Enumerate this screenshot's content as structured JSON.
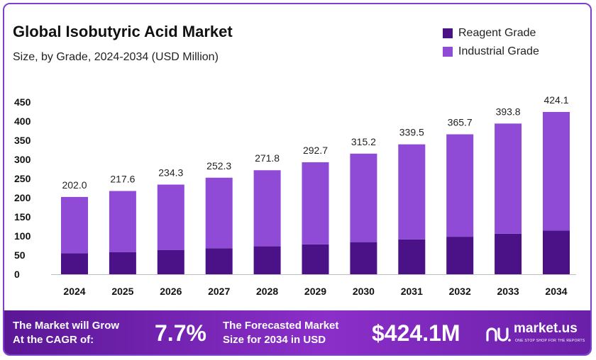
{
  "title": "Global Isobutyric Acid Market",
  "subtitle": "Size, by Grade, 2024-2034 (USD Million)",
  "legend": [
    {
      "label": "Reagent Grade",
      "color": "#4a1286"
    },
    {
      "label": "Industrial Grade",
      "color": "#8f4bd6"
    }
  ],
  "chart_data": {
    "type": "bar",
    "stacked": true,
    "categories": [
      "2024",
      "2025",
      "2026",
      "2027",
      "2028",
      "2029",
      "2030",
      "2031",
      "2032",
      "2033",
      "2034"
    ],
    "series": [
      {
        "name": "Reagent Grade",
        "color": "#4a1286",
        "values": [
          55,
          58,
          63,
          68,
          73,
          78,
          84,
          91,
          98,
          106,
          114
        ]
      },
      {
        "name": "Industrial Grade",
        "color": "#8f4bd6",
        "values": [
          147,
          159.6,
          171.3,
          184.3,
          198.8,
          214.7,
          231.2,
          248.5,
          267.7,
          287.8,
          310.1
        ]
      }
    ],
    "totals": [
      "202.0",
      "217.6",
      "234.3",
      "252.3",
      "271.8",
      "292.7",
      "315.2",
      "339.5",
      "365.7",
      "393.8",
      "424.1"
    ],
    "yticks": [
      0,
      50,
      100,
      150,
      200,
      250,
      300,
      350,
      400,
      450
    ],
    "ylim": [
      0,
      450
    ],
    "grid": false,
    "legend_position": "top-right"
  },
  "footer": {
    "cagr_label_line1": "The Market will Grow",
    "cagr_label_line2": "At the CAGR of:",
    "cagr_value": "7.7%",
    "forecast_label_line1": "The Forecasted Market",
    "forecast_label_line2": "Size for 2034 in USD",
    "forecast_value": "$424.1M",
    "brand": "market.us",
    "tagline": "ONE STOP SHOP FOR THE REPORTS"
  }
}
